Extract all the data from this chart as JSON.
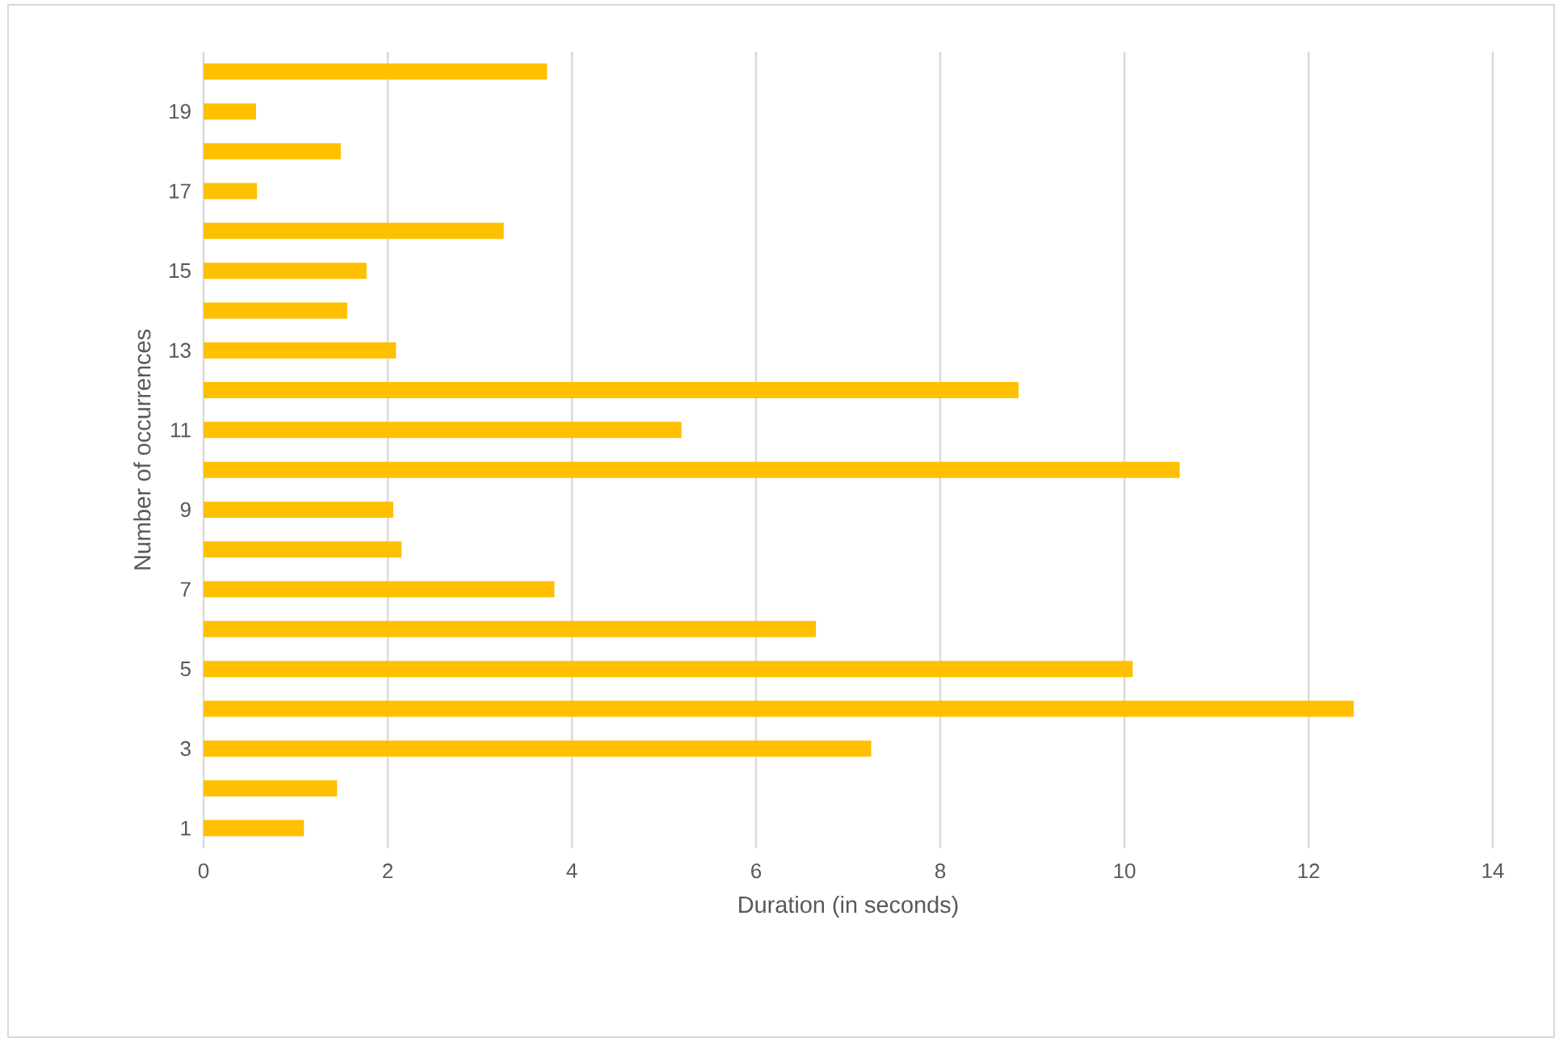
{
  "chart_data": {
    "type": "bar",
    "orientation": "horizontal",
    "xlabel": "Duration (in seconds)",
    "ylabel": "Number of occurrences",
    "categories": [
      null,
      "19",
      null,
      "17",
      null,
      "15",
      null,
      "13",
      null,
      "11",
      null,
      "9",
      null,
      "7",
      null,
      "5",
      null,
      "3",
      null,
      "1"
    ],
    "values": [
      3.73,
      0.57,
      1.49,
      0.58,
      3.26,
      1.77,
      1.56,
      2.09,
      8.85,
      5.19,
      10.6,
      2.06,
      2.15,
      3.81,
      6.65,
      10.09,
      12.49,
      7.25,
      1.45,
      1.09
    ],
    "color": "#ffc000",
    "xlim": [
      0,
      14
    ],
    "xticks": [
      0,
      2,
      4,
      6,
      8,
      10,
      12,
      14
    ],
    "grid": "x"
  }
}
